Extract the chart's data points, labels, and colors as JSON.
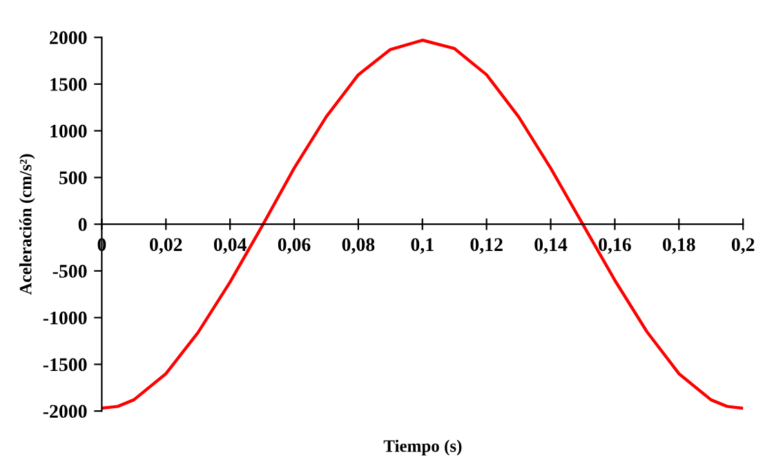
{
  "chart_data": {
    "type": "line",
    "xlabel": "Tiempo (s)",
    "ylabel": "Aceleración (cm/s²)",
    "x": [
      0,
      0.005,
      0.01,
      0.02,
      0.03,
      0.04,
      0.05,
      0.06,
      0.07,
      0.08,
      0.09,
      0.1,
      0.11,
      0.12,
      0.13,
      0.14,
      0.15,
      0.16,
      0.17,
      0.18,
      0.19,
      0.195,
      0.2
    ],
    "series": [
      {
        "color": "#ff0000",
        "values": [
          -1970,
          -1950,
          -1880,
          -1600,
          -1160,
          -620,
          -20,
          600,
          1150,
          1600,
          1870,
          1970,
          1880,
          1600,
          1150,
          600,
          0,
          -600,
          -1150,
          -1600,
          -1880,
          -1950,
          -1970
        ]
      }
    ],
    "xlim": [
      0,
      0.2
    ],
    "ylim": [
      -2000,
      2000
    ],
    "xticks": [
      0,
      {
        "value": 0.02,
        "label": "0,02"
      },
      {
        "value": 0.04,
        "label": "0,04"
      },
      {
        "value": 0.06,
        "label": "0,06"
      },
      {
        "value": 0.08,
        "label": "0,08"
      },
      {
        "value": 0.1,
        "label": "0,1"
      },
      {
        "value": 0.12,
        "label": "0,12"
      },
      {
        "value": 0.14,
        "label": "0,14"
      },
      {
        "value": 0.16,
        "label": "0,16"
      },
      {
        "value": 0.18,
        "label": "0,18"
      },
      {
        "value": 0.2,
        "label": "0,2"
      }
    ],
    "yticks": [
      -2000,
      -1500,
      -1000,
      -500,
      0,
      500,
      1000,
      1500,
      2000
    ],
    "grid": false,
    "marker": "none",
    "line_style": "solid"
  }
}
